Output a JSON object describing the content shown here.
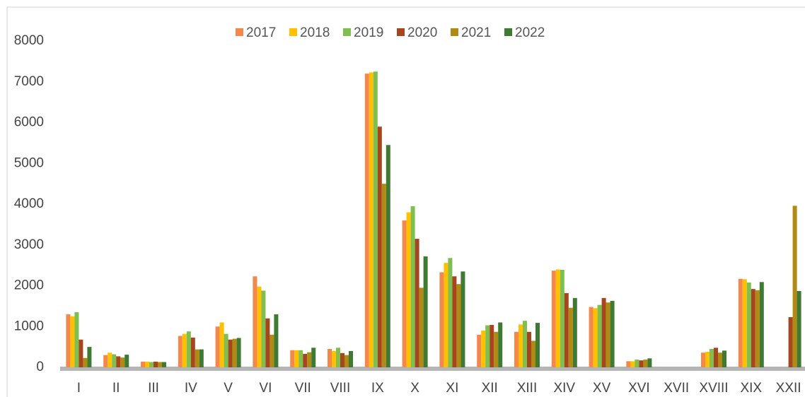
{
  "chart_data": {
    "type": "bar",
    "categories": [
      "I",
      "II",
      "III",
      "IV",
      "V",
      "VI",
      "VII",
      "VIII",
      "IX",
      "X",
      "XI",
      "XII",
      "XIII",
      "XIV",
      "XV",
      "XVI",
      "XVII",
      "XVIII",
      "XIX",
      "XXII"
    ],
    "series": [
      {
        "name": "2017",
        "color": "#f4874b",
        "values": [
          1300,
          300,
          140,
          770,
          1000,
          2230,
          420,
          450,
          7200,
          3600,
          2330,
          800,
          870,
          2370,
          1480,
          150,
          0,
          360,
          2170,
          null
        ]
      },
      {
        "name": "2018",
        "color": "#ffc000",
        "values": [
          1250,
          360,
          140,
          820,
          1100,
          1980,
          420,
          400,
          7230,
          3800,
          2560,
          900,
          1050,
          2400,
          1450,
          150,
          0,
          380,
          2160,
          null
        ]
      },
      {
        "name": "2019",
        "color": "#7fbf4f",
        "values": [
          1350,
          320,
          130,
          880,
          820,
          1880,
          420,
          480,
          7250,
          3950,
          2680,
          1030,
          1140,
          2390,
          1530,
          190,
          0,
          450,
          2080,
          null
        ]
      },
      {
        "name": "2020",
        "color": "#a5461e",
        "values": [
          680,
          270,
          140,
          730,
          680,
          1200,
          330,
          350,
          5900,
          3150,
          2230,
          1040,
          870,
          1820,
          1700,
          170,
          0,
          480,
          1920,
          1230
        ]
      },
      {
        "name": "2021",
        "color": "#b08a12",
        "values": [
          230,
          240,
          130,
          440,
          700,
          800,
          370,
          300,
          4500,
          1950,
          2040,
          870,
          650,
          1460,
          1590,
          190,
          0,
          360,
          1890,
          3960
        ]
      },
      {
        "name": "2022",
        "color": "#3f7a33",
        "values": [
          500,
          310,
          130,
          440,
          720,
          1300,
          480,
          400,
          5450,
          2720,
          2350,
          1100,
          1090,
          1700,
          1630,
          220,
          0,
          410,
          2090,
          1870
        ]
      }
    ],
    "ylim": [
      0,
      8000
    ],
    "yticks": [
      0,
      1000,
      2000,
      3000,
      4000,
      5000,
      6000,
      7000,
      8000
    ],
    "grid": false,
    "legend": "top"
  }
}
